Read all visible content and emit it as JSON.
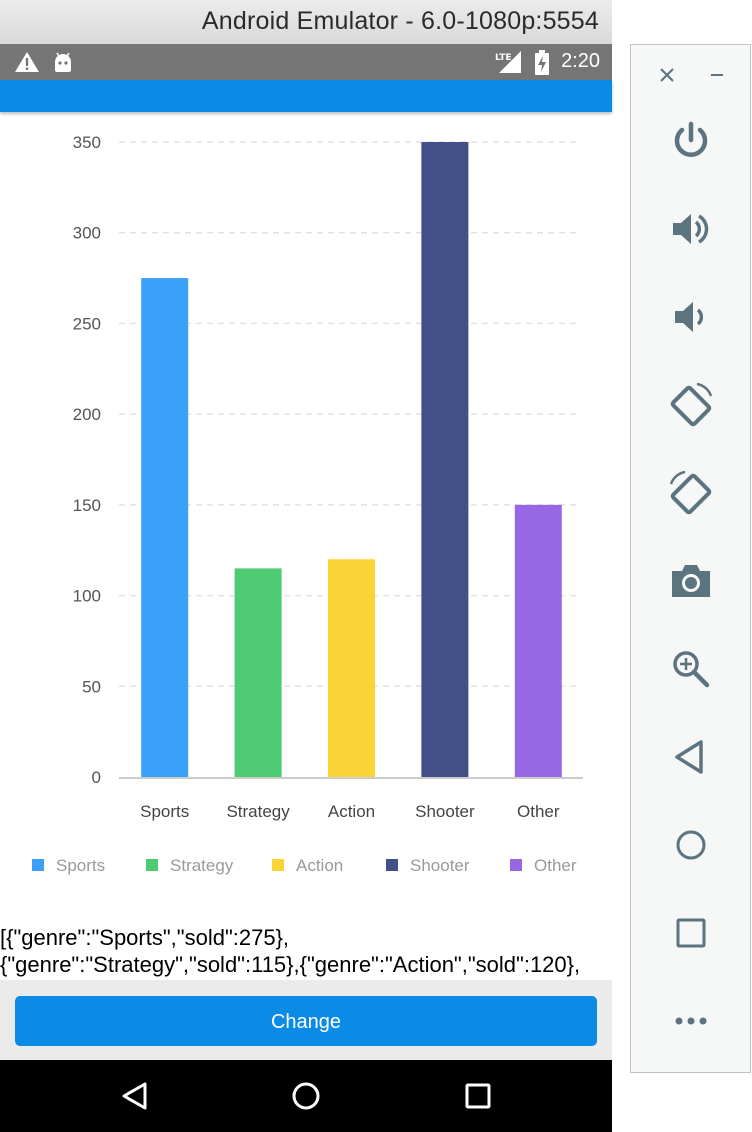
{
  "window": {
    "title": "Android Emulator - 6.0-1080p:5554"
  },
  "status_bar": {
    "time": "2:20",
    "network_label": "LTE",
    "icons": [
      "warning-icon",
      "android-icon",
      "lte-signal-icon",
      "battery-charging-icon"
    ]
  },
  "chart_data": {
    "type": "bar",
    "categories": [
      "Sports",
      "Strategy",
      "Action",
      "Shooter",
      "Other"
    ],
    "values": [
      275,
      115,
      120,
      350,
      150
    ],
    "colors": [
      "#3aa0fa",
      "#4fcc73",
      "#fad336",
      "#434f87",
      "#9766e4"
    ],
    "ylim": [
      0,
      350
    ],
    "yticks": [
      "0",
      "50",
      "100",
      "150",
      "200",
      "250",
      "300",
      "350"
    ],
    "grid": "horizontal-dashed",
    "legend": {
      "placement": "bottom",
      "items": [
        "Sports",
        "Strategy",
        "Action",
        "Shooter",
        "Other"
      ]
    }
  },
  "output": {
    "line1": "[{\"genre\":\"Sports\",\"sold\":275},",
    "line2": "{\"genre\":\"Strategy\",\"sold\":115},{\"genre\":\"Action\",\"sold\":120},"
  },
  "button": {
    "label": "Change"
  },
  "nav": {
    "icons": [
      "back-icon",
      "home-icon",
      "recents-icon"
    ]
  },
  "emulator_toolbar": {
    "icons": [
      "close-icon",
      "minimize-icon",
      "power-icon",
      "volume-up-icon",
      "volume-down-icon",
      "rotate-left-icon",
      "rotate-right-icon",
      "camera-icon",
      "zoom-icon",
      "back-icon",
      "home-icon",
      "overview-icon",
      "more-icon"
    ],
    "icon_color": "#5b7480"
  }
}
